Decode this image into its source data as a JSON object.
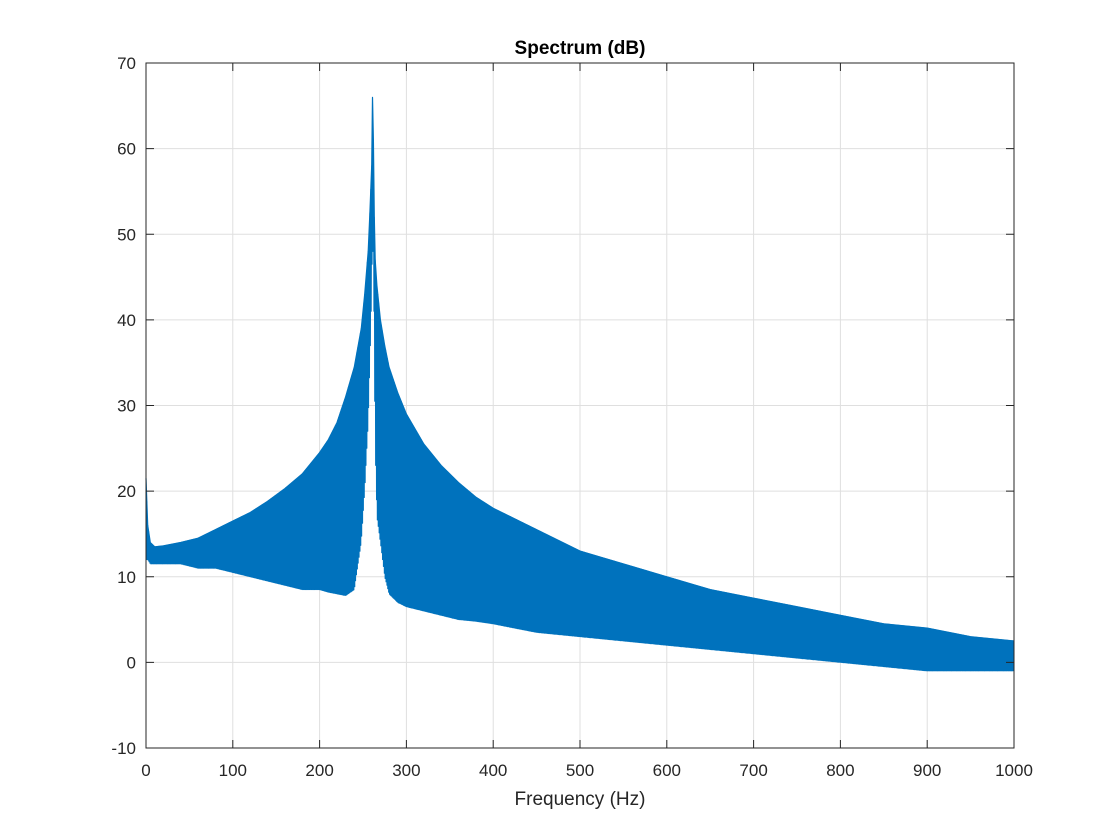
{
  "chart_data": {
    "type": "line",
    "title": "Spectrum (dB)",
    "xlabel": "Frequency (Hz)",
    "ylabel": "",
    "xlim": [
      0,
      1000
    ],
    "ylim": [
      -10,
      70
    ],
    "xticks": [
      0,
      100,
      200,
      300,
      400,
      500,
      600,
      700,
      800,
      900,
      1000
    ],
    "yticks": [
      -10,
      0,
      10,
      20,
      30,
      40,
      50,
      60,
      70
    ],
    "xtick_labels": [
      "0",
      "100",
      "200",
      "300",
      "400",
      "500",
      "600",
      "700",
      "800",
      "900",
      "1000"
    ],
    "ytick_labels": [
      "-10",
      "0",
      "10",
      "20",
      "30",
      "40",
      "50",
      "60",
      "70"
    ],
    "grid": true,
    "box": true,
    "series": [
      {
        "color": "#0072BD",
        "x": [
          0,
          2,
          5,
          10,
          20,
          40,
          60,
          80,
          100,
          120,
          140,
          160,
          180,
          200,
          210,
          220,
          230,
          240,
          248,
          252,
          256,
          258,
          260,
          261,
          262,
          263,
          264,
          266,
          270,
          275,
          280,
          290,
          300,
          320,
          340,
          360,
          380,
          400,
          450,
          500,
          550,
          600,
          650,
          700,
          750,
          800,
          850,
          900,
          950,
          1000
        ],
        "y": [
          21.5,
          16,
          14,
          13.5,
          13.6,
          14,
          14.5,
          15.5,
          16.5,
          17.5,
          18.8,
          20.3,
          22,
          24.5,
          26,
          28,
          31,
          34.5,
          39,
          43,
          48,
          52.5,
          58,
          66,
          61,
          52,
          47,
          44,
          40,
          37,
          34.5,
          31.5,
          29,
          25.5,
          23,
          21,
          19.3,
          18,
          15.5,
          13,
          11.5,
          10,
          8.5,
          7.5,
          6.5,
          5.5,
          4.5,
          4,
          3,
          2.5
        ],
        "lower": [
          12,
          12,
          11.5,
          11.5,
          11.5,
          11.5,
          11,
          11,
          10.5,
          10,
          9.5,
          9,
          8.5,
          8.5,
          8.2,
          8,
          7.8,
          8.5,
          14,
          20,
          28,
          35,
          43,
          50,
          46,
          36,
          25,
          17,
          14,
          10,
          8,
          7,
          6.5,
          6,
          5.5,
          5,
          4.8,
          4.5,
          3.5,
          3,
          2.5,
          2,
          1.5,
          1,
          0.5,
          0,
          -0.5,
          -1,
          -1,
          -1
        ]
      }
    ]
  }
}
